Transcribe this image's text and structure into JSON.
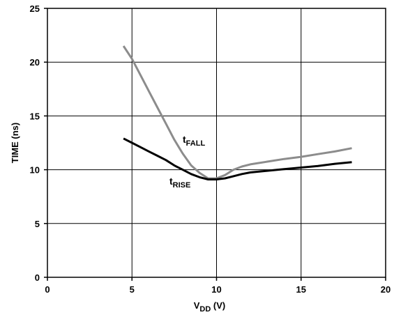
{
  "chart_data": {
    "type": "line",
    "xlabel": {
      "main": "V",
      "sub": "DD",
      "suffix": " (V)"
    },
    "ylabel": "TIME (ns)",
    "xlim": [
      0,
      20
    ],
    "ylim": [
      0,
      25
    ],
    "x_ticks": [
      0,
      5,
      10,
      15,
      20
    ],
    "y_ticks": [
      0,
      5,
      10,
      15,
      20,
      25
    ],
    "grid": true,
    "series": [
      {
        "name_main": "t",
        "name_sub": "FALL",
        "color": "#8c8c8c",
        "x": [
          4.5,
          5.0,
          5.5,
          6.0,
          6.5,
          7.0,
          7.5,
          8.0,
          8.5,
          9.0,
          9.5,
          10.0,
          10.5,
          11.0,
          11.5,
          12.0,
          13.0,
          14.0,
          15.0,
          16.0,
          17.0,
          18.0
        ],
        "y": [
          21.5,
          20.3,
          18.8,
          17.3,
          15.8,
          14.3,
          12.8,
          11.5,
          10.4,
          9.7,
          9.2,
          9.2,
          9.5,
          10.0,
          10.3,
          10.5,
          10.75,
          11.0,
          11.2,
          11.45,
          11.7,
          12.0
        ]
      },
      {
        "name_main": "t",
        "name_sub": "RISE",
        "color": "#000000",
        "x": [
          4.5,
          5.0,
          5.5,
          6.0,
          6.5,
          7.0,
          7.5,
          8.0,
          8.5,
          9.0,
          9.5,
          10.0,
          10.5,
          11.0,
          11.5,
          12.0,
          13.0,
          14.0,
          15.0,
          16.0,
          17.0,
          18.0
        ],
        "y": [
          12.9,
          12.5,
          12.1,
          11.7,
          11.3,
          10.9,
          10.4,
          10.0,
          9.6,
          9.3,
          9.1,
          9.1,
          9.2,
          9.4,
          9.6,
          9.75,
          9.9,
          10.05,
          10.2,
          10.35,
          10.55,
          10.7
        ]
      }
    ]
  }
}
